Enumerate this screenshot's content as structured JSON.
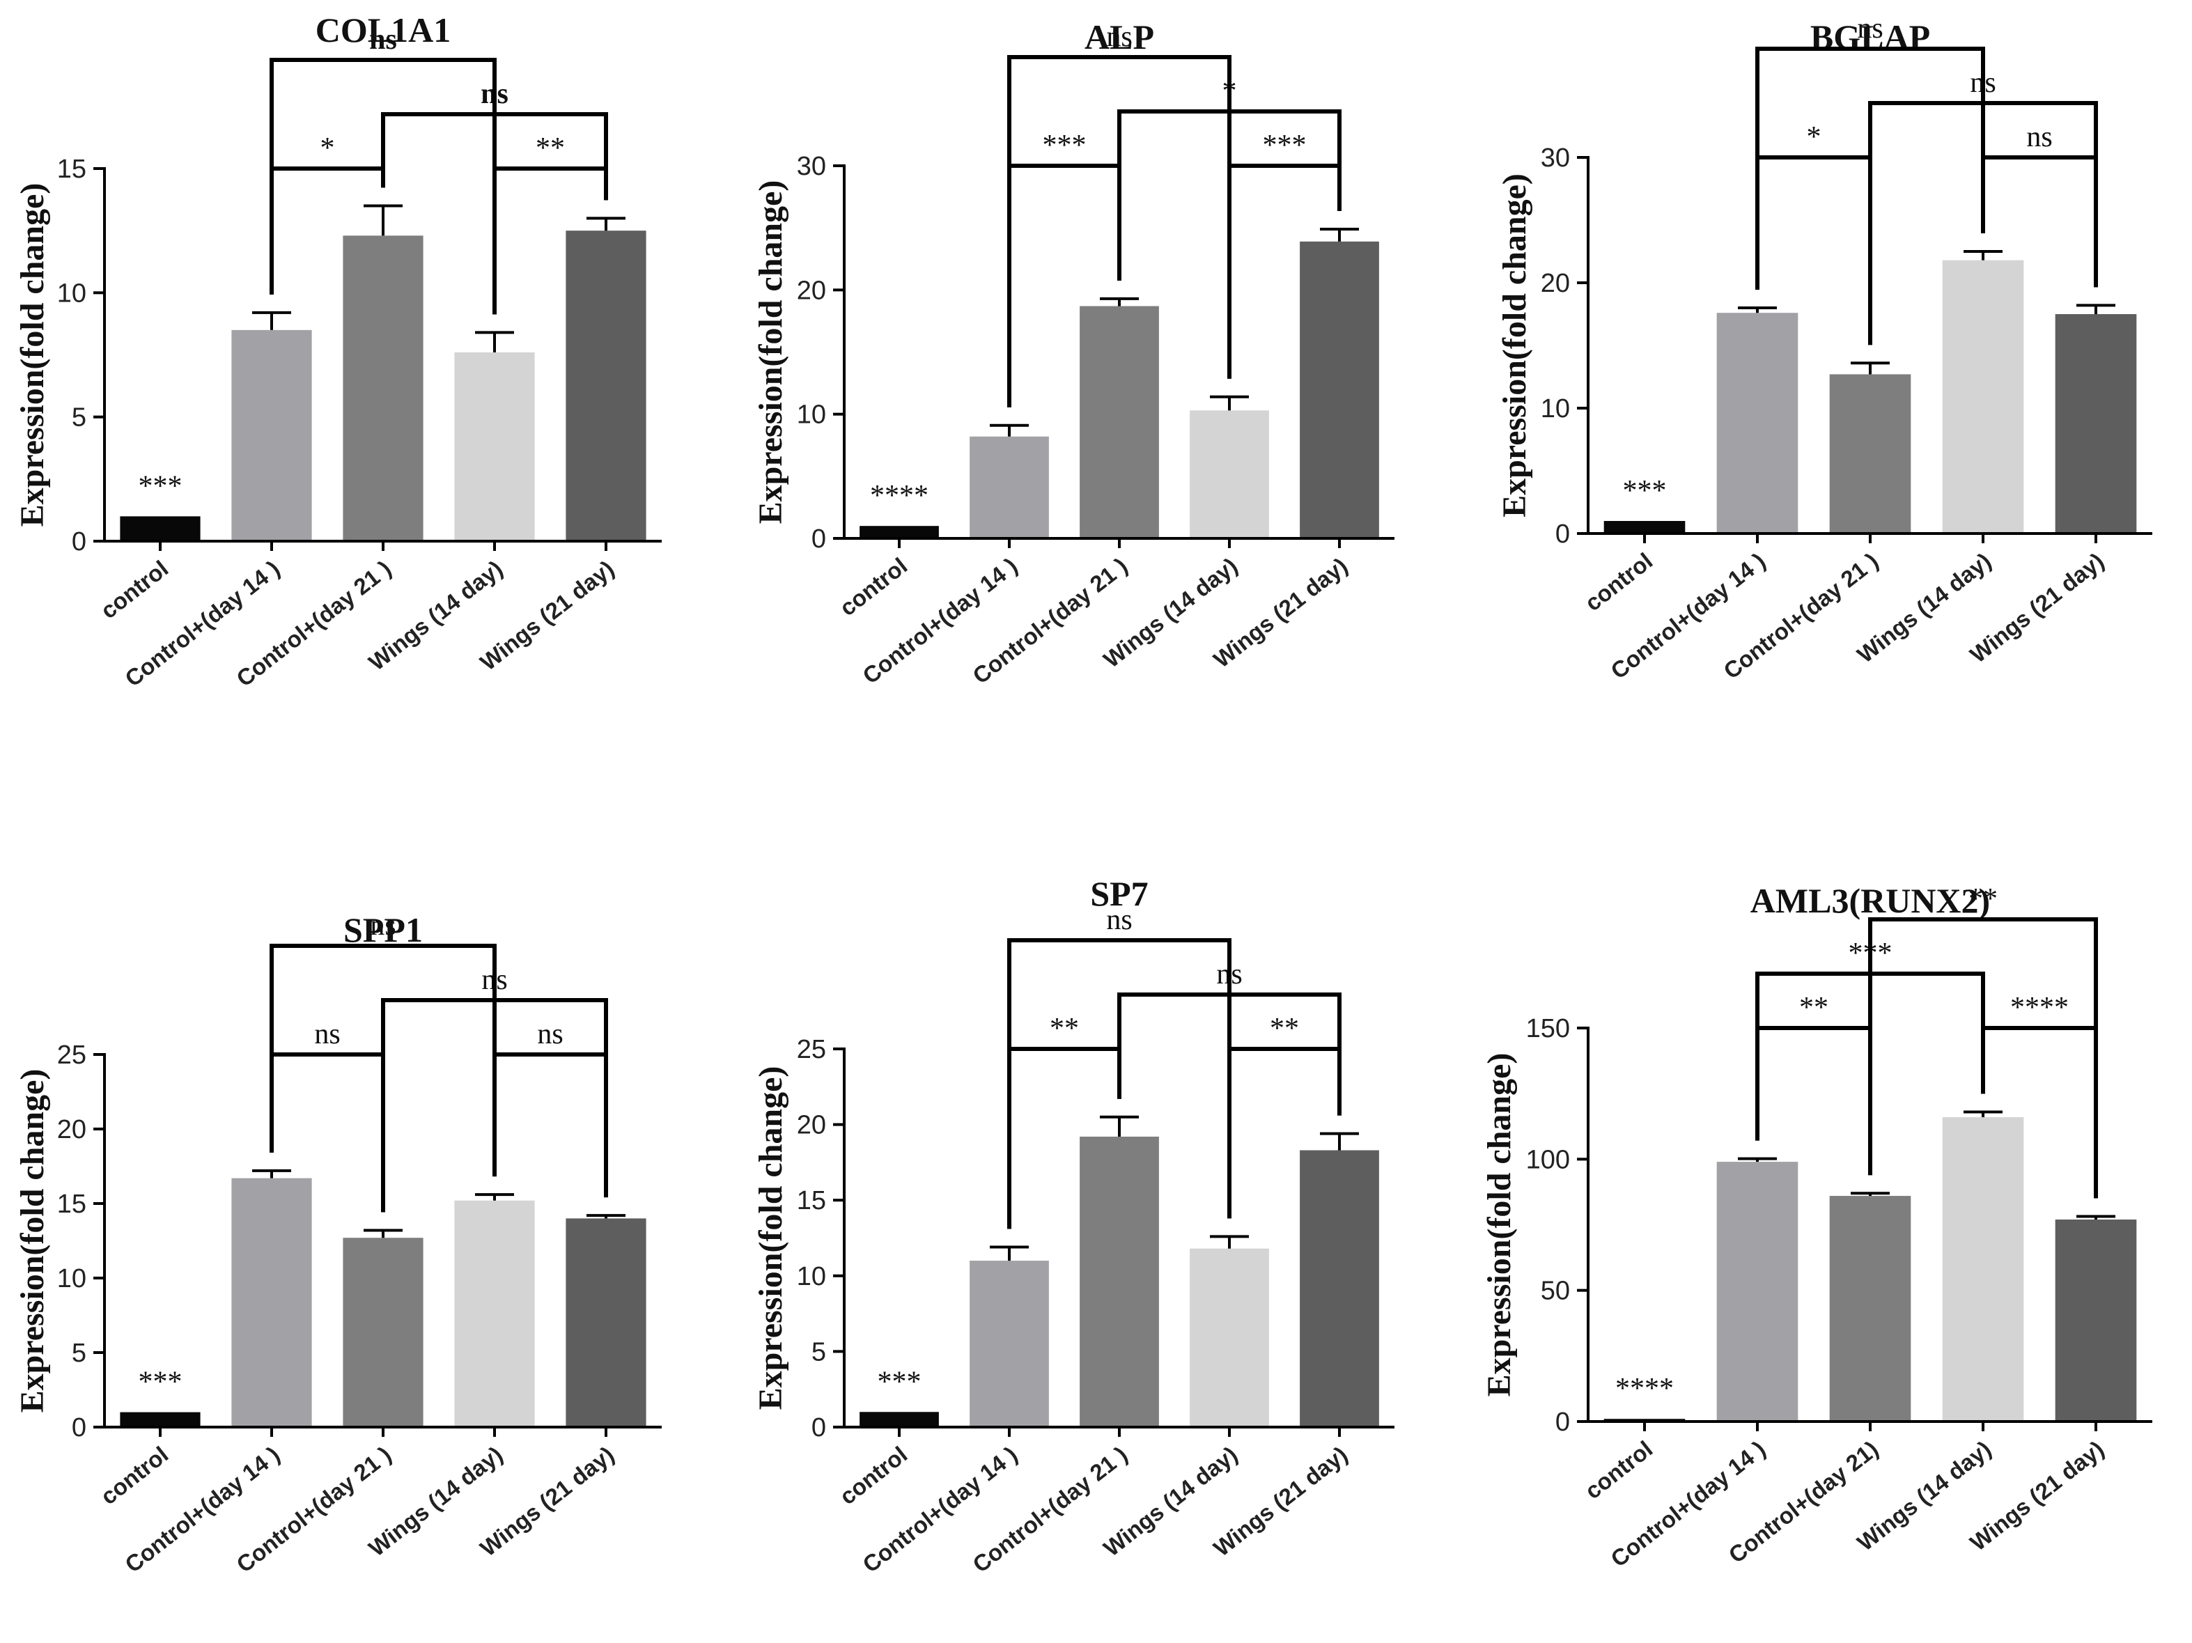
{
  "chart_data": [
    {
      "type": "bar",
      "title": "COL1A1",
      "ylabel": "Expression(fold change)",
      "xlabel": "",
      "ylim": [
        0,
        15
      ],
      "yticks": [
        0,
        5,
        10,
        15
      ],
      "categories": [
        "control",
        "Control+(day 14 )",
        "Control+(day 21 )",
        "Wings (14 day)",
        "Wings (21 day)"
      ],
      "values": [
        1,
        8.5,
        12.3,
        7.6,
        12.5
      ],
      "errors": [
        0,
        0.7,
        1.2,
        0.8,
        0.5
      ],
      "colors": [
        "#080808",
        "#a2a2a6",
        "#7e7e7e",
        "#d4d4d4",
        "#5e5e5e"
      ],
      "bar_annotations": [
        {
          "bar": 0,
          "label": "***"
        }
      ],
      "bold_ns": true,
      "brackets": [
        {
          "from": 1,
          "to": 2,
          "level": 1,
          "label": "*"
        },
        {
          "from": 3,
          "to": 4,
          "level": 1,
          "label": "**"
        },
        {
          "from": 2,
          "to": 4,
          "level": 2,
          "label": "ns"
        },
        {
          "from": 1,
          "to": 3,
          "level": 3,
          "label": "ns"
        }
      ]
    },
    {
      "type": "bar",
      "title": "ALP",
      "ylabel": "Expression(fold change)",
      "xlabel": "",
      "ylim": [
        0,
        30
      ],
      "yticks": [
        0,
        10,
        20,
        30
      ],
      "categories": [
        "control",
        "Control+(day 14 )",
        "Control+(day 21 )",
        "Wings (14 day)",
        "Wings (21 day)"
      ],
      "values": [
        1,
        8.2,
        18.7,
        10.3,
        23.9
      ],
      "errors": [
        0,
        0.9,
        0.6,
        1.1,
        1.0
      ],
      "colors": [
        "#080808",
        "#a2a2a6",
        "#7e7e7e",
        "#d4d4d4",
        "#5e5e5e"
      ],
      "bar_annotations": [
        {
          "bar": 0,
          "label": "****"
        }
      ],
      "bold_ns": false,
      "brackets": [
        {
          "from": 1,
          "to": 2,
          "level": 1,
          "label": "***"
        },
        {
          "from": 3,
          "to": 4,
          "level": 1,
          "label": "***"
        },
        {
          "from": 2,
          "to": 4,
          "level": 2,
          "label": "*"
        },
        {
          "from": 1,
          "to": 3,
          "level": 3,
          "label": "ns"
        }
      ]
    },
    {
      "type": "bar",
      "title": "BGLAP",
      "ylabel": "Expression(fold change)",
      "xlabel": "",
      "ylim": [
        0,
        30
      ],
      "yticks": [
        0,
        10,
        20,
        30
      ],
      "categories": [
        "control",
        "Control+(day 14 )",
        "Control+(day 21 )",
        "Wings (14 day)",
        "Wings (21 day)"
      ],
      "values": [
        1,
        17.6,
        12.7,
        21.8,
        17.5
      ],
      "errors": [
        0,
        0.4,
        0.9,
        0.7,
        0.7
      ],
      "colors": [
        "#080808",
        "#a2a2a6",
        "#7e7e7e",
        "#d4d4d4",
        "#5e5e5e"
      ],
      "bar_annotations": [
        {
          "bar": 0,
          "label": "***"
        }
      ],
      "bold_ns": false,
      "brackets": [
        {
          "from": 1,
          "to": 2,
          "level": 1,
          "label": "*"
        },
        {
          "from": 3,
          "to": 4,
          "level": 1,
          "label": "ns"
        },
        {
          "from": 2,
          "to": 4,
          "level": 2,
          "label": "ns"
        },
        {
          "from": 1,
          "to": 3,
          "level": 3,
          "label": "ns"
        }
      ]
    },
    {
      "type": "bar",
      "title": "SPP1",
      "ylabel": "Expression(fold change)",
      "xlabel": "",
      "ylim": [
        0,
        25
      ],
      "yticks": [
        0,
        5,
        10,
        15,
        20,
        25
      ],
      "categories": [
        "control",
        "Control+(day 14 )",
        "Control+(day 21 )",
        "Wings (14 day)",
        "Wings (21 day)"
      ],
      "values": [
        1,
        16.7,
        12.7,
        15.2,
        14.0
      ],
      "errors": [
        0,
        0.5,
        0.5,
        0.4,
        0.2
      ],
      "colors": [
        "#080808",
        "#a2a2a6",
        "#7e7e7e",
        "#d4d4d4",
        "#5e5e5e"
      ],
      "bar_annotations": [
        {
          "bar": 0,
          "label": "***"
        }
      ],
      "bold_ns": false,
      "brackets": [
        {
          "from": 1,
          "to": 2,
          "level": 1,
          "label": "ns"
        },
        {
          "from": 3,
          "to": 4,
          "level": 1,
          "label": "ns"
        },
        {
          "from": 2,
          "to": 4,
          "level": 2,
          "label": "ns"
        },
        {
          "from": 1,
          "to": 3,
          "level": 3,
          "label": "ns"
        }
      ]
    },
    {
      "type": "bar",
      "title": "SP7",
      "ylabel": "Expression(fold change)",
      "xlabel": "",
      "ylim": [
        0,
        25
      ],
      "yticks": [
        0,
        5,
        10,
        15,
        20,
        25
      ],
      "categories": [
        "control",
        "Control+(day 14 )",
        "Control+(day 21 )",
        "Wings (14 day)",
        "Wings (21 day)"
      ],
      "values": [
        1,
        11.0,
        19.2,
        11.8,
        18.3
      ],
      "errors": [
        0,
        0.9,
        1.3,
        0.8,
        1.1
      ],
      "colors": [
        "#080808",
        "#a2a2a6",
        "#7e7e7e",
        "#d4d4d4",
        "#5e5e5e"
      ],
      "bar_annotations": [
        {
          "bar": 0,
          "label": "***"
        }
      ],
      "bold_ns": false,
      "brackets": [
        {
          "from": 1,
          "to": 2,
          "level": 1,
          "label": "**"
        },
        {
          "from": 3,
          "to": 4,
          "level": 1,
          "label": "**"
        },
        {
          "from": 2,
          "to": 4,
          "level": 2,
          "label": "ns"
        },
        {
          "from": 1,
          "to": 3,
          "level": 3,
          "label": "ns"
        }
      ]
    },
    {
      "type": "bar",
      "title": "AML3(RUNX2)",
      "ylabel": "Expression(fold change)",
      "xlabel": "",
      "ylim": [
        0,
        150
      ],
      "yticks": [
        0,
        50,
        100,
        150
      ],
      "categories": [
        "control",
        "Control+(day 14 )",
        "Control+(day 21)",
        "Wings (14 day)",
        "Wings (21 day)"
      ],
      "values": [
        1,
        99,
        86,
        116,
        77
      ],
      "errors": [
        0,
        1.2,
        1.0,
        2.0,
        1.2
      ],
      "colors": [
        "#080808",
        "#a2a2a6",
        "#7e7e7e",
        "#d4d4d4",
        "#5e5e5e"
      ],
      "bar_annotations": [
        {
          "bar": 0,
          "label": "****"
        }
      ],
      "bold_ns": false,
      "brackets": [
        {
          "from": 1,
          "to": 2,
          "level": 1,
          "label": "**"
        },
        {
          "from": 3,
          "to": 4,
          "level": 1,
          "label": "****"
        },
        {
          "from": 1,
          "to": 3,
          "level": 2,
          "label": "***"
        },
        {
          "from": 2,
          "to": 4,
          "level": 3,
          "label": "**"
        }
      ]
    }
  ]
}
